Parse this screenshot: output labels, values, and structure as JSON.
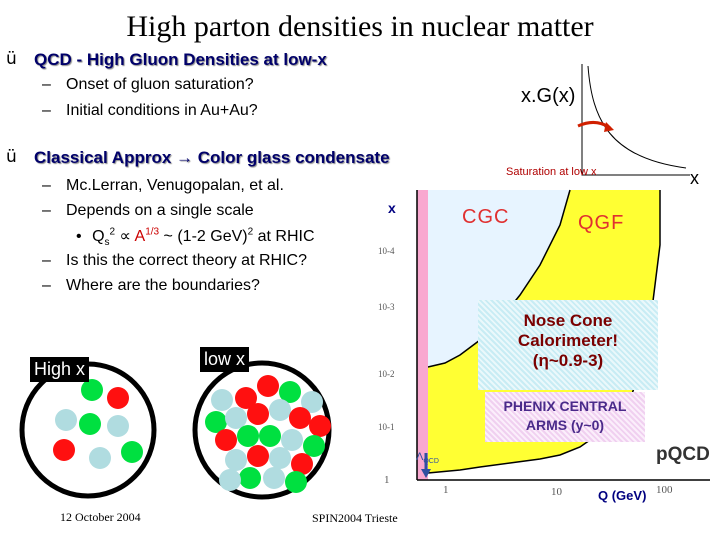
{
  "title": "High parton densities in nuclear matter",
  "check_glyph": "ü",
  "bullet1": {
    "heading": "QCD - High Gluon Densities at low-x",
    "items": [
      "Onset of gluon  saturation?",
      "Initial conditions in Au+Au?"
    ]
  },
  "bullet2": {
    "heading_pre": "Classical Approx ",
    "arrow": "→",
    "heading_post": " Color glass condensate",
    "items": [
      "Mc.Lerran, Venugopalan, et al.",
      "Depends on a single scale"
    ],
    "sub_item": {
      "bullet": "•",
      "q": "Q",
      "sub": "s",
      "sup": "2",
      "prop": "∝",
      "a": "A",
      "a_sup": "1/3",
      "rest": " ~ (1-2 GeV)",
      "rest_sup": "2",
      "tail": " at RHIC"
    },
    "items2": [
      "Is this the correct theory at RHIC?",
      "Where are the boundaries?"
    ]
  },
  "dash": "–",
  "gluon_plot": {
    "ylabel": "x.G(x)",
    "xlabel": "x",
    "caption": "Saturation at low x"
  },
  "phase_plot": {
    "y_axis_label": "x",
    "yticks": [
      "10-4",
      "10-3",
      "10-2",
      "10-1",
      "1"
    ],
    "xticks": [
      "1",
      "10",
      "100"
    ],
    "xlabel": "Q (GeV)",
    "lambda_label": "Λ",
    "lambda_sub": "QCD",
    "cgc": "CGC",
    "qgf": "QGF",
    "pqcd": "pQCD"
  },
  "nose_cone": {
    "line1": "Nose Cone",
    "line2": "Calorimeter!",
    "line3": "(η~0.9-3)"
  },
  "phenix": {
    "line1": "PHENIX CENTRAL",
    "line2": "ARMS (y~0)"
  },
  "high_x_label": "High x",
  "low_x_label": "low x",
  "footer": {
    "date": "12 October 2004",
    "venue": "SPIN2004 Trieste"
  },
  "colors": {
    "green": "#00e040",
    "red": "#ff1010",
    "lightblue": "#b0dce0",
    "pink": "#f9a8d0",
    "yellow": "#ffff00",
    "navy": "#000080"
  }
}
